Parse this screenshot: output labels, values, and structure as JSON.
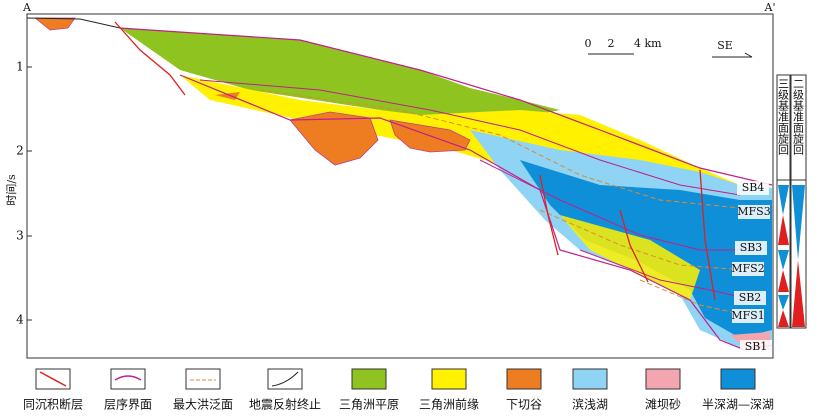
{
  "section": {
    "start": "A",
    "end": "A'",
    "direction": "SE"
  },
  "axis": {
    "label": "时间/s",
    "ticks": [
      "1",
      "2",
      "3",
      "4"
    ]
  },
  "scale": {
    "labels": [
      "0",
      "2",
      "4 km"
    ]
  },
  "columns": [
    "三级基准面旋回",
    "二级基准面旋回"
  ],
  "surfaces": [
    "SB4",
    "MFS3",
    "SB3",
    "MFS2",
    "SB2",
    "MFS1",
    "SB1"
  ],
  "legend": [
    "同沉积断层",
    "层序界面",
    "最大洪泛面",
    "地震反射终止",
    "三角洲平原",
    "三角洲前缘",
    "下切谷",
    "滨浅湖",
    "滩坝砂",
    "半深湖—深湖"
  ]
}
